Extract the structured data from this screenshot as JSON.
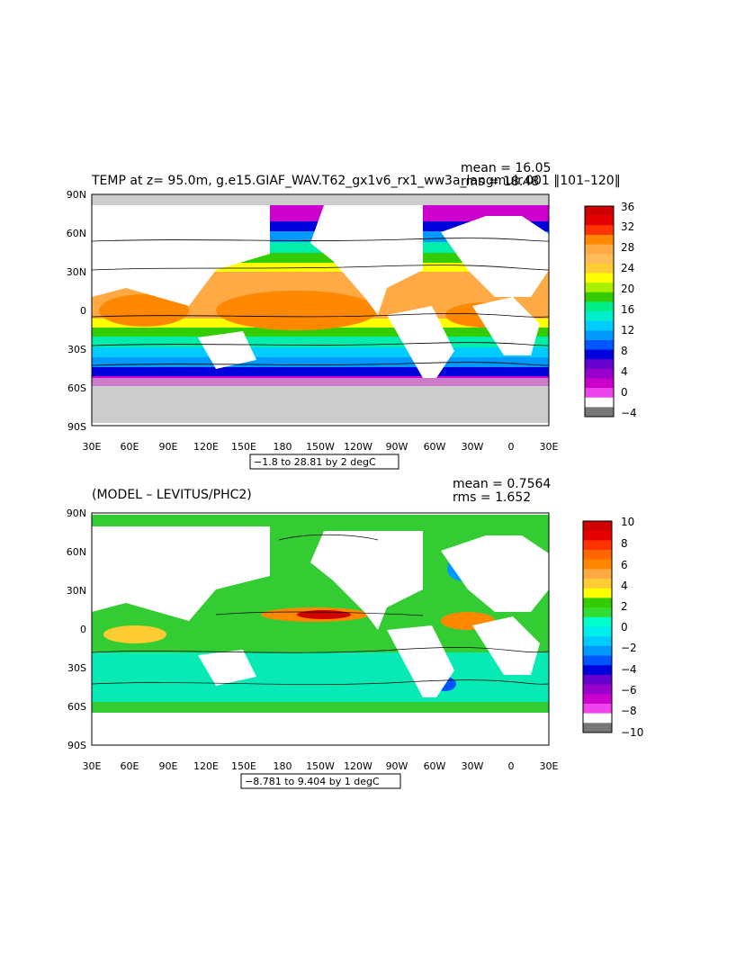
{
  "panel_top": {
    "title": "TEMP at z=  95.0m, g.e15.GIAF_WAV.T62_gx1v6_rx1_ww3a_langmuir.001 ‖101–120‖",
    "mean": "mean = 16.05",
    "rms": "rms = 18.48",
    "range_box": "−1.8 to 28.81 by 2 degC",
    "colorbar_labels": [
      "36",
      "32",
      "28",
      "24",
      "20",
      "16",
      "12",
      "8",
      "4",
      "0",
      "−4"
    ],
    "colorbar_colors": [
      "#d10000",
      "#e50000",
      "#ff3300",
      "#ff8800",
      "#ffaa44",
      "#ffbb55",
      "#ffcc33",
      "#ffff00",
      "#aaee00",
      "#33cc00",
      "#00ee88",
      "#00eecc",
      "#00ccff",
      "#0099ff",
      "#0055ff",
      "#0000dd",
      "#6600cc",
      "#9900cc",
      "#cc00cc",
      "#ee44ee",
      "#ffffff",
      "#777777"
    ]
  },
  "panel_bottom": {
    "title": "(MODEL – LEVITUS/PHC2)",
    "mean": "mean = 0.7564",
    "rms": "rms = 1.652",
    "range_box": "−8.781 to 9.404 by 1 degC",
    "colorbar_labels": [
      "10",
      "8",
      "6",
      "4",
      "2",
      "0",
      "−2",
      "−4",
      "−6",
      "−8",
      "−10"
    ],
    "colorbar_colors": [
      "#d10000",
      "#e50000",
      "#ff3300",
      "#ff6600",
      "#ff8800",
      "#ffaa44",
      "#ffcc33",
      "#ffff00",
      "#33cc00",
      "#33dd33",
      "#00ffcc",
      "#00eeee",
      "#00ccff",
      "#0099ff",
      "#0055ff",
      "#0000dd",
      "#6600cc",
      "#9900cc",
      "#cc00cc",
      "#ee44ee",
      "#ffffff",
      "#777777"
    ]
  },
  "axes": {
    "lat_labels": [
      "90N",
      "60N",
      "30N",
      "0",
      "30S",
      "60S",
      "90S"
    ],
    "lon_labels": [
      "30E",
      "60E",
      "90E",
      "120E",
      "150E",
      "180",
      "150W",
      "120W",
      "90W",
      "60W",
      "30W",
      "0",
      "30E"
    ]
  }
}
